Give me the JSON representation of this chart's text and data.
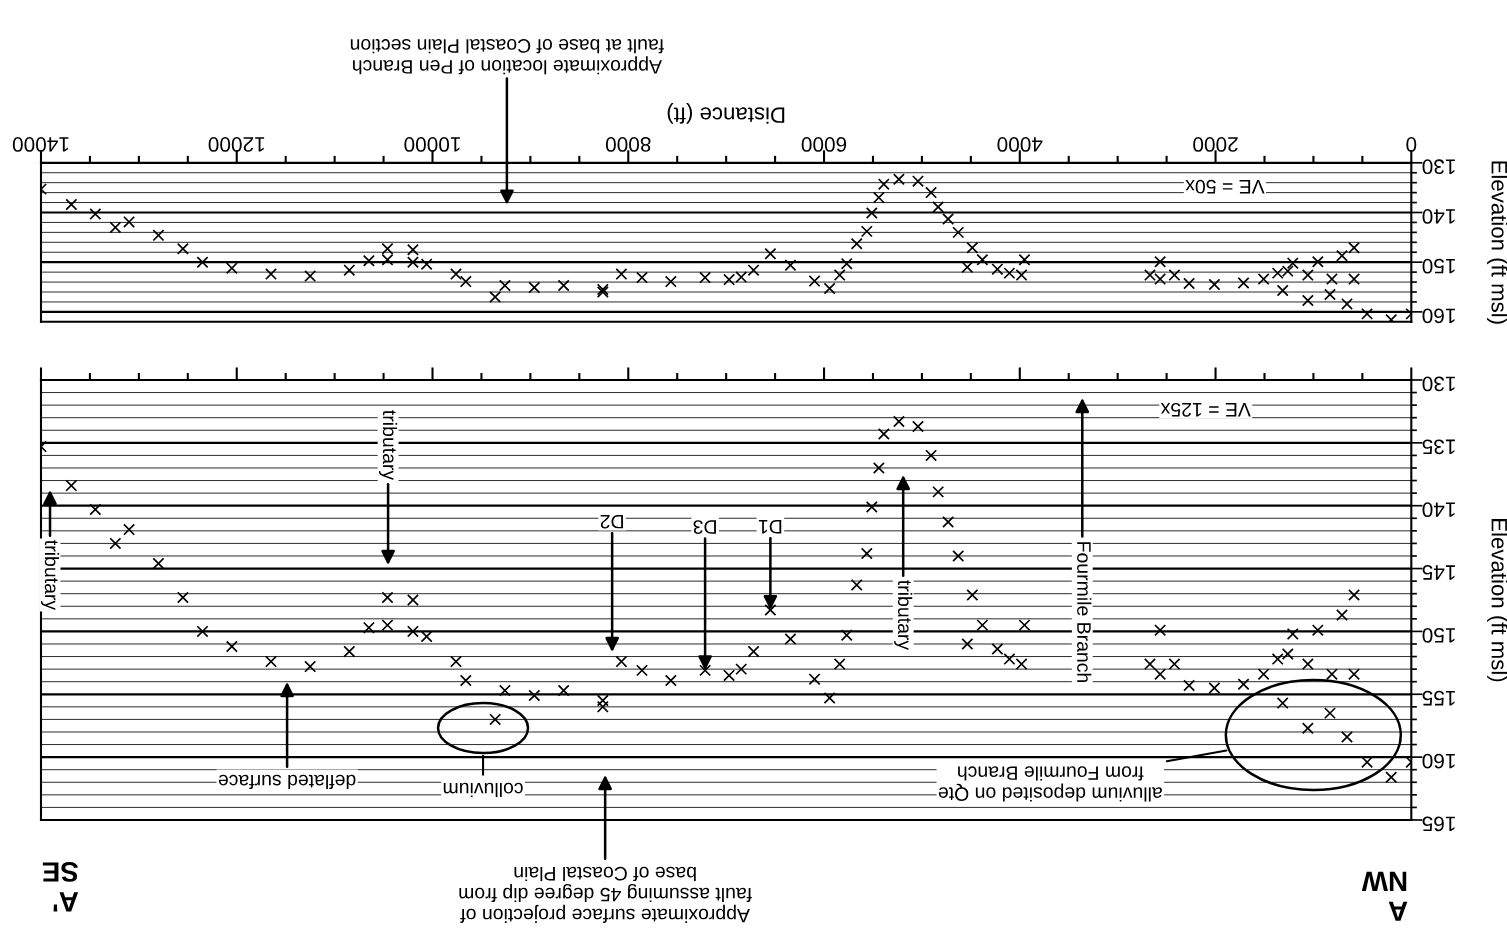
{
  "chart_data": [
    {
      "type": "scatter",
      "xlabel": "Distance (ft)",
      "ylabel": "Elevation (ft msl)",
      "marker": "cross",
      "grid": "y",
      "xlim": [
        14000,
        0
      ],
      "ylim": [
        162,
        130
      ],
      "xticks": [
        0,
        {
          "value": 500,
          "label": null
        },
        {
          "value": 1000,
          "label": null
        },
        {
          "value": 1500,
          "label": null
        },
        2000,
        {
          "value": 2500,
          "label": null
        },
        {
          "value": 3000,
          "label": null
        },
        {
          "value": 3500,
          "label": null
        },
        4000,
        {
          "value": 4500,
          "label": null
        },
        {
          "value": 5000,
          "label": null
        },
        {
          "value": 5500,
          "label": null
        },
        6000,
        {
          "value": 6500,
          "label": null
        },
        {
          "value": 7000,
          "label": null
        },
        {
          "value": 7500,
          "label": null
        },
        8000,
        {
          "value": 8500,
          "label": null
        },
        {
          "value": 9000,
          "label": null
        },
        {
          "value": 9500,
          "label": null
        },
        10000,
        {
          "value": 10500,
          "label": null
        },
        {
          "value": 11000,
          "label": null
        },
        {
          "value": 11500,
          "label": null
        },
        12000,
        {
          "value": 12500,
          "label": null
        },
        {
          "value": 13000,
          "label": null
        },
        {
          "value": 13500,
          "label": null
        },
        14000
      ],
      "yticks": [
        130,
        {
          "value": 132,
          "label": null
        },
        {
          "value": 134,
          "label": null
        },
        {
          "value": 136,
          "label": null
        },
        {
          "value": 138,
          "label": null
        },
        140,
        {
          "value": 142,
          "label": null
        },
        {
          "value": 144,
          "label": null
        },
        {
          "value": 146,
          "label": null
        },
        {
          "value": 148,
          "label": null
        },
        150,
        {
          "value": 152,
          "label": null
        },
        {
          "value": 154,
          "label": null
        },
        {
          "value": 156,
          "label": null
        },
        {
          "value": 158,
          "label": null
        },
        160
      ],
      "series": [
        {
          "color": "#000000",
          "x": [
            14000,
            13690,
            13445,
            13240,
            13100,
            12800,
            12550,
            12350,
            12050,
            11650,
            11250,
            10850,
            10650,
            10460,
            10460,
            10200,
            10200,
            10060,
            9760,
            9660,
            9360,
            9260,
            8960,
            8660,
            8260,
            8260,
            8070,
            7860,
            7565,
            7215,
            6970,
            6846,
            6720,
            6548,
            6343,
            6097,
            5943,
            5840,
            5768,
            5666,
            5563,
            5512,
            5440,
            5389,
            5235,
            5040,
            4906,
            4834,
            4732,
            4629,
            4536,
            4485,
            4382,
            4229,
            4106,
            3982,
            3952,
            2670,
            2566,
            2566,
            2420,
            2270,
            2012,
            1714,
            1509,
            1365,
            1262,
            1211,
            1057,
            955,
            811,
            708,
            585,
            585,
            1314,
            1057,
            831,
            657,
            452,
            205,
            0
          ],
          "values": [
            135.3,
            138.4,
            140.3,
            143.0,
            141.9,
            144.6,
            147.3,
            150.0,
            151.2,
            152.4,
            152.8,
            151.6,
            149.7,
            147.3,
            149.5,
            147.5,
            150.0,
            150.4,
            152.4,
            153.9,
            157.0,
            154.7,
            155.1,
            154.7,
            155.5,
            156.0,
            152.4,
            153.1,
            153.9,
            153.1,
            153.5,
            153.0,
            151.6,
            148.3,
            150.6,
            153.8,
            155.3,
            152.6,
            150.3,
            146.3,
            143.8,
            140.1,
            137.0,
            134.3,
            133.3,
            133.7,
            136.0,
            138.9,
            141.3,
            144.0,
            151.0,
            147.1,
            149.5,
            151.4,
            152.2,
            152.6,
            149.5,
            152.6,
            149.9,
            153.4,
            152.6,
            154.3,
            154.5,
            154.2,
            153.4,
            152.2,
            151.8,
            150.2,
            152.6,
            149.9,
            153.4,
            148.7,
            147.1,
            153.4,
            155.7,
            157.7,
            156.5,
            158.4,
            160.4,
            161.6,
            160.4
          ]
        }
      ],
      "annotations": [
        "VE = 50x",
        "Approximate location of Pen Branch\nfault at base of Coastal Plain section"
      ]
    },
    {
      "type": "scatter",
      "ylabel": "Elevation (ft msl)",
      "marker": "cross",
      "grid": "y",
      "tick_labels": "y",
      "xlim": [
        14000,
        0
      ],
      "ylim": [
        165,
        130
      ],
      "xticks": [
        0,
        {
          "value": 500,
          "label": null
        },
        {
          "value": 1000,
          "label": null
        },
        {
          "value": 1500,
          "label": null
        },
        2000,
        {
          "value": 2500,
          "label": null
        },
        {
          "value": 3000,
          "label": null
        },
        {
          "value": 3500,
          "label": null
        },
        4000,
        {
          "value": 4500,
          "label": null
        },
        {
          "value": 5000,
          "label": null
        },
        {
          "value": 5500,
          "label": null
        },
        6000,
        {
          "value": 6500,
          "label": null
        },
        {
          "value": 7000,
          "label": null
        },
        {
          "value": 7500,
          "label": null
        },
        8000,
        {
          "value": 8500,
          "label": null
        },
        {
          "value": 9000,
          "label": null
        },
        {
          "value": 9500,
          "label": null
        },
        10000,
        {
          "value": 10500,
          "label": null
        },
        {
          "value": 11000,
          "label": null
        },
        {
          "value": 11500,
          "label": null
        },
        12000,
        {
          "value": 12500,
          "label": null
        },
        {
          "value": 13000,
          "label": null
        },
        {
          "value": 13500,
          "label": null
        },
        14000
      ],
      "yticks": [
        130,
        {
          "value": 131,
          "label": null
        },
        {
          "value": 132,
          "label": null
        },
        {
          "value": 133,
          "label": null
        },
        {
          "value": 134,
          "label": null
        },
        135,
        {
          "value": 136,
          "label": null
        },
        {
          "value": 137,
          "label": null
        },
        {
          "value": 138,
          "label": null
        },
        {
          "value": 139,
          "label": null
        },
        140,
        {
          "value": 141,
          "label": null
        },
        {
          "value": 142,
          "label": null
        },
        {
          "value": 143,
          "label": null
        },
        {
          "value": 144,
          "label": null
        },
        145,
        {
          "value": 146,
          "label": null
        },
        {
          "value": 147,
          "label": null
        },
        {
          "value": 148,
          "label": null
        },
        {
          "value": 149,
          "label": null
        },
        150,
        {
          "value": 151,
          "label": null
        },
        {
          "value": 152,
          "label": null
        },
        {
          "value": 153,
          "label": null
        },
        {
          "value": 154,
          "label": null
        },
        155,
        {
          "value": 156,
          "label": null
        },
        {
          "value": 157,
          "label": null
        },
        {
          "value": 158,
          "label": null
        },
        {
          "value": 159,
          "label": null
        },
        160,
        {
          "value": 161,
          "label": null
        },
        {
          "value": 162,
          "label": null
        },
        {
          "value": 163,
          "label": null
        },
        {
          "value": 164,
          "label": null
        },
        165
      ],
      "series": [
        {
          "color": "#000000",
          "x": [
            14000,
            13690,
            13445,
            13240,
            13100,
            12800,
            12550,
            12350,
            12050,
            11650,
            11250,
            10850,
            10650,
            10460,
            10460,
            10200,
            10200,
            10060,
            9760,
            9660,
            9360,
            9260,
            8960,
            8660,
            8260,
            8260,
            8070,
            7860,
            7565,
            7215,
            6970,
            6846,
            6720,
            6548,
            6343,
            6097,
            5943,
            5840,
            5768,
            5666,
            5563,
            5512,
            5440,
            5389,
            5235,
            5040,
            4906,
            4834,
            4732,
            4629,
            4536,
            4485,
            4382,
            4229,
            4106,
            3982,
            3952,
            2670,
            2566,
            2566,
            2420,
            2270,
            2012,
            1714,
            1509,
            1365,
            1262,
            1211,
            1057,
            955,
            811,
            708,
            585,
            585,
            1314,
            1057,
            831,
            657,
            452,
            205,
            0
          ],
          "values": [
            135.3,
            138.4,
            140.3,
            143.0,
            141.9,
            144.6,
            147.3,
            150.0,
            151.2,
            152.4,
            152.8,
            151.6,
            149.7,
            147.3,
            149.5,
            147.5,
            150.0,
            150.4,
            152.4,
            153.9,
            157.0,
            154.7,
            155.1,
            154.7,
            155.5,
            156.0,
            152.4,
            153.1,
            153.9,
            153.1,
            153.5,
            153.0,
            151.6,
            148.3,
            150.6,
            153.8,
            155.3,
            152.6,
            150.3,
            146.3,
            143.8,
            140.1,
            137.0,
            134.3,
            133.3,
            133.7,
            136.0,
            138.9,
            141.3,
            144.0,
            151.0,
            147.1,
            149.5,
            151.4,
            152.2,
            152.6,
            149.5,
            152.6,
            149.9,
            153.4,
            152.6,
            154.3,
            154.5,
            154.2,
            153.4,
            152.2,
            151.8,
            150.2,
            152.6,
            149.9,
            153.4,
            148.7,
            147.1,
            153.4,
            155.7,
            157.7,
            156.5,
            158.4,
            160.4,
            161.6,
            160.4
          ]
        }
      ],
      "annotations": [
        "VE = 125x",
        "tributary",
        "tributary",
        "deflated surface",
        "colluvium",
        "D2",
        {
          "text": "D3",
          "x": 7215,
          "y": 153.1
        },
        {
          "text": "D1",
          "x": 6548,
          "y": 148.3
        },
        "tributary",
        "Fourmile Branch",
        "alluvium deposited on Qte\nfrom Fourmile Branch",
        "Approximate surface projection of\nfault assuming 45 degree dip from\nbase of Coastal Plain",
        "A\nNW",
        "A'\nSE"
      ]
    }
  ]
}
